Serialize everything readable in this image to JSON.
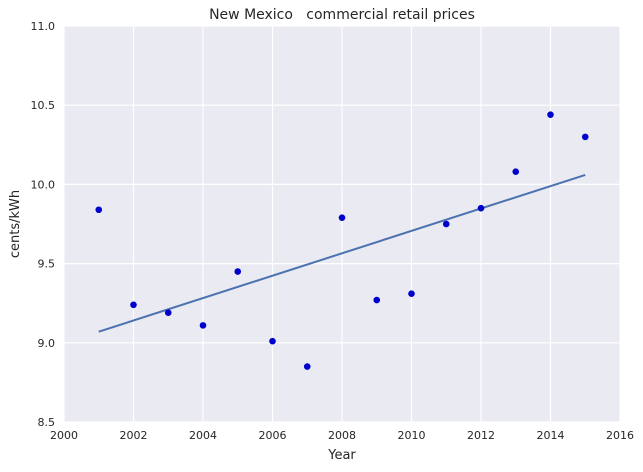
{
  "chart_data": {
    "type": "scatter",
    "title": "New Mexico   commercial retail prices",
    "xlabel": "Year",
    "ylabel": "cents/kWh",
    "xlim": [
      2000,
      2016
    ],
    "ylim": [
      8.5,
      11.0
    ],
    "xticks": [
      2000,
      2002,
      2004,
      2006,
      2008,
      2010,
      2012,
      2014,
      2016
    ],
    "yticks": [
      8.5,
      9.0,
      9.5,
      10.0,
      10.5,
      11.0
    ],
    "ytick_labels": [
      "8.5",
      "9.0",
      "9.5",
      "10.0",
      "10.5",
      "11.0"
    ],
    "grid": true,
    "series": [
      {
        "x": [
          2001,
          2002,
          2003,
          2004,
          2005,
          2006,
          2007,
          2008,
          2009,
          2010,
          2011,
          2012,
          2013,
          2014,
          2015
        ],
        "y": [
          9.84,
          9.24,
          9.19,
          9.11,
          9.45,
          9.01,
          8.85,
          9.79,
          9.27,
          9.31,
          9.75,
          9.85,
          10.08,
          10.44,
          10.3
        ],
        "color": "#0000cc"
      }
    ],
    "trendline": {
      "x": [
        2001,
        2015
      ],
      "y": [
        9.07,
        10.06
      ],
      "color": "#4c72b0"
    },
    "plot_background": "#eaeaf2",
    "grid_color": "#ffffff"
  }
}
